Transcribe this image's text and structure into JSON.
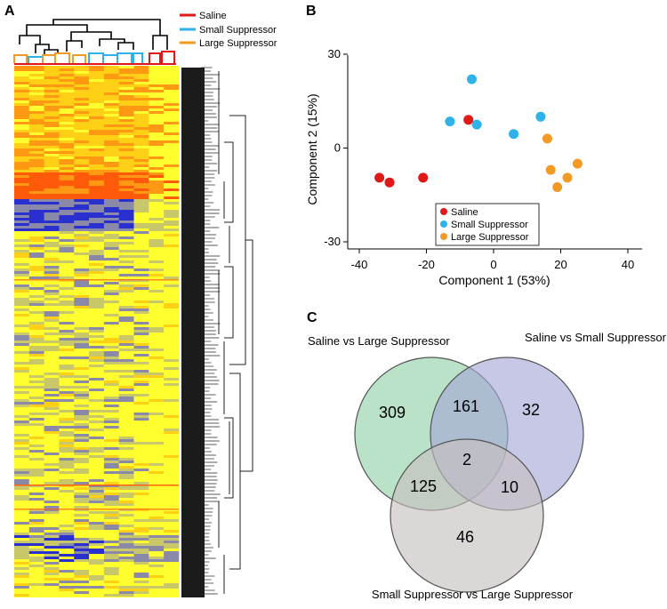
{
  "panels": {
    "a": "A",
    "b": "B",
    "c": "C"
  },
  "colors": {
    "saline": "#e01818",
    "small": "#2eb2e8",
    "large": "#f39a26"
  },
  "legend": [
    {
      "label": "Saline",
      "color": "#e01818"
    },
    {
      "label": "Small Suppressor",
      "color": "#2eb2e8"
    },
    {
      "label": "Large Suppressor",
      "color": "#f39a26"
    }
  ],
  "chart_data": [
    {
      "type": "heatmap",
      "panel": "A",
      "column_groups": [
        "Large Suppressor",
        "Large Suppressor",
        "Large Suppressor",
        "Large Suppressor",
        "Small Suppressor",
        "Small Suppressor",
        "Small Suppressor",
        "Small Suppressor",
        "Saline",
        "Saline",
        "Saline"
      ],
      "palette": [
        "#2a2fd0",
        "#8a8aa8",
        "#c8c86a",
        "#ffff30",
        "#ffd015",
        "#ff9812",
        "#ff5a0a"
      ],
      "legend": [
        "Saline",
        "Small Suppressor",
        "Large Suppressor"
      ]
    },
    {
      "type": "scatter",
      "panel": "B",
      "xlabel": "Component 1 (53%)",
      "ylabel": "Component 2 (15%)",
      "xlim": [
        -40,
        40
      ],
      "ylim": [
        -30,
        30
      ],
      "xticks": [
        "-40",
        "-20",
        "0",
        "20",
        "40"
      ],
      "yticks": [
        "30",
        "0",
        "-30"
      ],
      "legend_position": "bottom-center",
      "series": [
        {
          "name": "Saline",
          "color": "#e01818",
          "points": [
            [
              -34,
              -9.5
            ],
            [
              -31,
              -11
            ],
            [
              -21,
              -9.5
            ],
            [
              -7.5,
              9
            ]
          ]
        },
        {
          "name": "Small Suppressor",
          "color": "#2eb2e8",
          "points": [
            [
              -6.5,
              22
            ],
            [
              -13,
              8.5
            ],
            [
              -5,
              7.5
            ],
            [
              6,
              4.5
            ],
            [
              14,
              10
            ]
          ]
        },
        {
          "name": "Large Suppressor",
          "color": "#f39a26",
          "points": [
            [
              16,
              3
            ],
            [
              17,
              -7
            ],
            [
              22,
              -9.5
            ],
            [
              19,
              -12.5
            ],
            [
              25,
              -5
            ]
          ]
        }
      ]
    },
    {
      "type": "venn",
      "panel": "C",
      "sets": [
        {
          "label": "Saline vs Large Suppressor",
          "color": "#8fd0a6"
        },
        {
          "label": "Saline vs Small Suppressor",
          "color": "#a4a6d6"
        },
        {
          "label": "Small Suppressor vs Large Suppressor",
          "color": "#c6bebe"
        }
      ],
      "regions": {
        "only_saline_large": "309",
        "saline_large_and_saline_small": "161",
        "only_saline_small": "32",
        "all_three": "2",
        "saline_large_and_small_large": "125",
        "saline_small_and_small_large": "10",
        "only_small_large": "46"
      }
    }
  ]
}
